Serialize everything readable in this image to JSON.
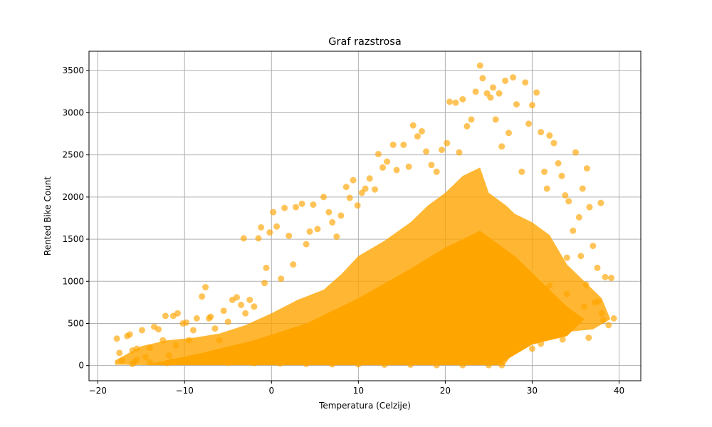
{
  "chart_data": {
    "type": "scatter",
    "title": "Graf razstrosa",
    "xlabel": "Temperatura (Celzije)",
    "ylabel": "Rented Bike Count",
    "xlim": [
      -21,
      42.5
    ],
    "ylim": [
      -180,
      3730
    ],
    "x_ticks": [
      -20,
      -10,
      0,
      10,
      20,
      30,
      40
    ],
    "y_ticks": [
      0,
      500,
      1000,
      1500,
      2000,
      2500,
      3000,
      3500
    ],
    "grid": true,
    "point_color": "#FFA500",
    "point_alpha": 0.65,
    "series": [
      {
        "points": [
          [
            -17.8,
            320
          ],
          [
            -17.5,
            150
          ],
          [
            -17.2,
            60
          ],
          [
            -16.6,
            350
          ],
          [
            -16.3,
            370
          ],
          [
            -16.0,
            180
          ],
          [
            -15.8,
            40
          ],
          [
            -15.5,
            200
          ],
          [
            -14.9,
            420
          ],
          [
            -14.5,
            100
          ],
          [
            -14.0,
            210
          ],
          [
            -13.5,
            460
          ],
          [
            -13.0,
            430
          ],
          [
            -12.5,
            300
          ],
          [
            -12.2,
            590
          ],
          [
            -11.8,
            120
          ],
          [
            -11.3,
            590
          ],
          [
            -11.0,
            240
          ],
          [
            -10.8,
            620
          ],
          [
            -10.2,
            500
          ],
          [
            -9.8,
            510
          ],
          [
            -9.5,
            300
          ],
          [
            -9.0,
            420
          ],
          [
            -8.6,
            560
          ],
          [
            -8.0,
            820
          ],
          [
            -7.6,
            930
          ],
          [
            -7.2,
            560
          ],
          [
            -7.0,
            580
          ],
          [
            -6.5,
            440
          ],
          [
            -6.0,
            300
          ],
          [
            -5.5,
            650
          ],
          [
            -5.0,
            520
          ],
          [
            -4.5,
            780
          ],
          [
            -4.0,
            810
          ],
          [
            -3.5,
            720
          ],
          [
            -3.2,
            1510
          ],
          [
            -3.0,
            620
          ],
          [
            -2.5,
            780
          ],
          [
            -2.0,
            700
          ],
          [
            -1.5,
            1510
          ],
          [
            -1.2,
            1640
          ],
          [
            -0.8,
            980
          ],
          [
            -0.6,
            1160
          ],
          [
            -0.2,
            1580
          ],
          [
            0.2,
            1820
          ],
          [
            0.6,
            1650
          ],
          [
            1.1,
            1030
          ],
          [
            1.5,
            1870
          ],
          [
            2.0,
            1540
          ],
          [
            2.5,
            1200
          ],
          [
            2.8,
            1880
          ],
          [
            3.5,
            1920
          ],
          [
            4.0,
            1440
          ],
          [
            4.4,
            1590
          ],
          [
            4.8,
            1910
          ],
          [
            5.3,
            1620
          ],
          [
            6.0,
            2000
          ],
          [
            6.6,
            1820
          ],
          [
            7.0,
            1700
          ],
          [
            7.5,
            1530
          ],
          [
            8.0,
            1780
          ],
          [
            8.6,
            2120
          ],
          [
            9.0,
            1990
          ],
          [
            9.4,
            2200
          ],
          [
            9.9,
            1900
          ],
          [
            10.4,
            2050
          ],
          [
            10.8,
            2100
          ],
          [
            11.3,
            2220
          ],
          [
            11.9,
            2090
          ],
          [
            12.3,
            2510
          ],
          [
            12.8,
            2350
          ],
          [
            13.3,
            2420
          ],
          [
            14.0,
            2620
          ],
          [
            14.4,
            2320
          ],
          [
            15.2,
            2620
          ],
          [
            15.8,
            2360
          ],
          [
            16.3,
            2850
          ],
          [
            16.8,
            2720
          ],
          [
            17.3,
            2780
          ],
          [
            17.8,
            2540
          ],
          [
            18.4,
            2380
          ],
          [
            19.0,
            2300
          ],
          [
            19.6,
            2560
          ],
          [
            20.2,
            2640
          ],
          [
            20.5,
            3130
          ],
          [
            21.2,
            3120
          ],
          [
            21.6,
            2530
          ],
          [
            22.0,
            3160
          ],
          [
            22.5,
            2840
          ],
          [
            23.0,
            2920
          ],
          [
            23.5,
            3250
          ],
          [
            24.0,
            3560
          ],
          [
            24.3,
            3410
          ],
          [
            24.8,
            3230
          ],
          [
            25.2,
            3180
          ],
          [
            25.5,
            3300
          ],
          [
            25.8,
            2920
          ],
          [
            26.2,
            3230
          ],
          [
            26.5,
            2600
          ],
          [
            26.9,
            3380
          ],
          [
            27.3,
            2760
          ],
          [
            27.8,
            3420
          ],
          [
            28.2,
            3100
          ],
          [
            28.8,
            2300
          ],
          [
            29.2,
            3360
          ],
          [
            29.6,
            2870
          ],
          [
            30.0,
            3090
          ],
          [
            30.5,
            3240
          ],
          [
            31.0,
            2770
          ],
          [
            31.4,
            2300
          ],
          [
            31.7,
            2100
          ],
          [
            32.0,
            2730
          ],
          [
            32.5,
            2640
          ],
          [
            33.0,
            2400
          ],
          [
            33.4,
            2250
          ],
          [
            33.8,
            2020
          ],
          [
            34.2,
            1950
          ],
          [
            34.7,
            1600
          ],
          [
            35.0,
            2530
          ],
          [
            35.4,
            1760
          ],
          [
            35.8,
            2100
          ],
          [
            36.3,
            2340
          ],
          [
            36.6,
            1880
          ],
          [
            37.0,
            1420
          ],
          [
            37.5,
            1160
          ],
          [
            37.9,
            1930
          ],
          [
            38.4,
            1050
          ],
          [
            38.8,
            480
          ],
          [
            39.1,
            1040
          ],
          [
            39.4,
            560
          ],
          [
            -16.0,
            20
          ],
          [
            -14.0,
            40
          ],
          [
            -12.0,
            30
          ],
          [
            -10.0,
            60
          ],
          [
            -8.0,
            90
          ],
          [
            -6.0,
            150
          ],
          [
            -4.0,
            200
          ],
          [
            -2.0,
            260
          ],
          [
            0.0,
            300
          ],
          [
            2.0,
            380
          ],
          [
            4.0,
            430
          ],
          [
            6.0,
            500
          ],
          [
            8.0,
            600
          ],
          [
            10.0,
            720
          ],
          [
            12.0,
            800
          ],
          [
            14.0,
            900
          ],
          [
            16.0,
            1000
          ],
          [
            18.0,
            1050
          ],
          [
            20.0,
            1150
          ],
          [
            22.0,
            1250
          ],
          [
            24.0,
            1300
          ],
          [
            26.0,
            1200
          ],
          [
            28.0,
            1100
          ],
          [
            30.0,
            1050
          ],
          [
            32.0,
            950
          ],
          [
            34.0,
            850
          ],
          [
            36.0,
            700
          ],
          [
            38.0,
            620
          ],
          [
            26.5,
            5
          ],
          [
            25.0,
            5
          ],
          [
            22.0,
            5
          ],
          [
            19.0,
            5
          ],
          [
            16.0,
            10
          ],
          [
            13.0,
            10
          ],
          [
            10.0,
            15
          ],
          [
            7.0,
            15
          ],
          [
            4.0,
            20
          ],
          [
            1.0,
            25
          ],
          [
            -2.0,
            30
          ],
          [
            -5.0,
            35
          ],
          [
            30.0,
            200
          ],
          [
            31.0,
            260
          ],
          [
            33.5,
            310
          ],
          [
            36.5,
            330
          ],
          [
            37.2,
            750
          ],
          [
            38.2,
            540
          ],
          [
            34.0,
            1280
          ],
          [
            35.6,
            1300
          ],
          [
            36.2,
            960
          ],
          [
            37.6,
            760
          ],
          [
            29.4,
            500
          ],
          [
            28.4,
            700
          ],
          [
            27.0,
            900
          ],
          [
            24.5,
            600
          ],
          [
            22.5,
            400
          ],
          [
            20.5,
            300
          ],
          [
            18.5,
            200
          ],
          [
            15.5,
            150
          ],
          [
            12.5,
            120
          ],
          [
            9.5,
            110
          ],
          [
            6.5,
            100
          ],
          [
            3.5,
            90
          ],
          [
            0.5,
            80
          ],
          [
            -3.5,
            70
          ],
          [
            -7.5,
            60
          ],
          [
            -11.5,
            50
          ],
          [
            -15.5,
            70
          ]
        ]
      }
    ]
  }
}
